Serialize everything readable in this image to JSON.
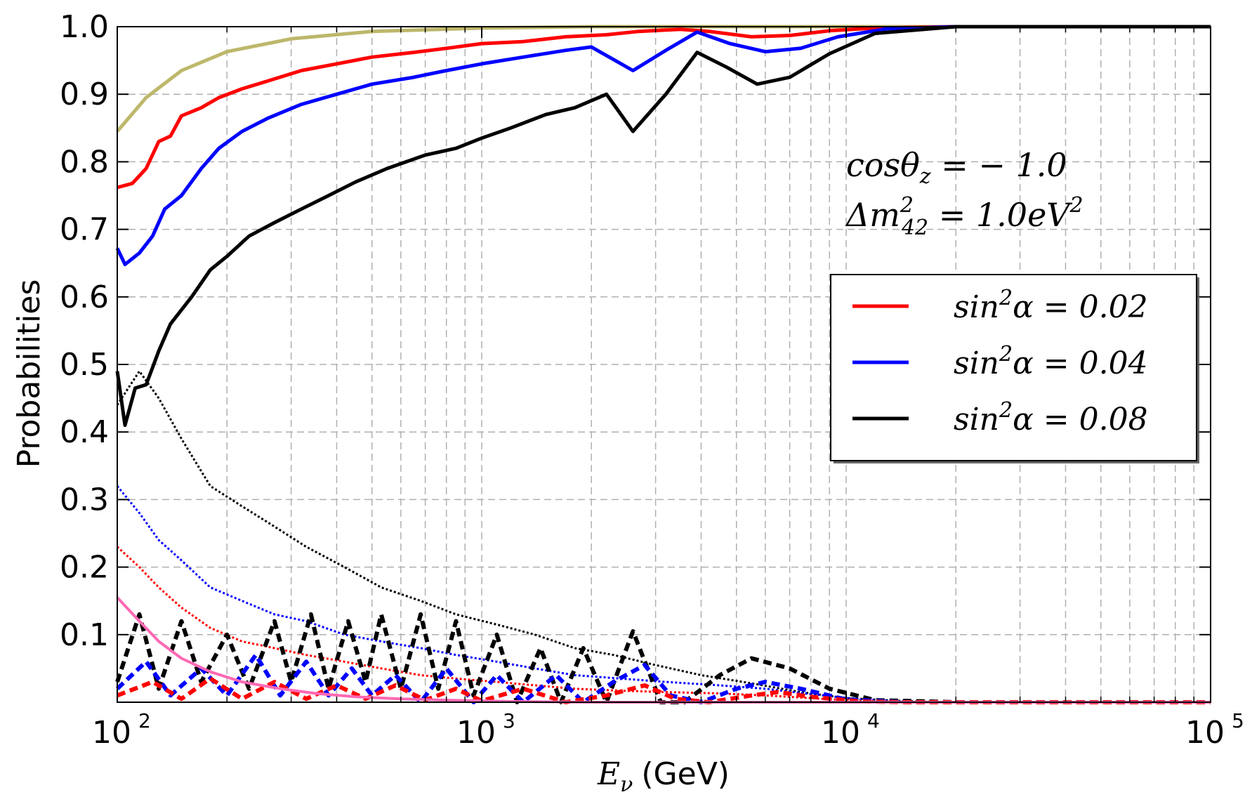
{
  "chart_data": {
    "type": "line",
    "xscale": "log",
    "xlim": [
      100,
      100000
    ],
    "ylim": [
      0.0,
      1.0
    ],
    "xlabel": {
      "symbol": "E",
      "subscript": "ν",
      "unit": "(GeV)"
    },
    "ylabel": "Probabilities",
    "x_ticks": [
      {
        "base": "10",
        "exp": "2",
        "value": 100
      },
      {
        "base": "10",
        "exp": "3",
        "value": 1000
      },
      {
        "base": "10",
        "exp": "4",
        "value": 10000
      },
      {
        "base": "10",
        "exp": "5",
        "value": 100000
      }
    ],
    "y_ticks": [
      {
        "label": "0.1",
        "value": 0.1
      },
      {
        "label": "0.2",
        "value": 0.2
      },
      {
        "label": "0.3",
        "value": 0.3
      },
      {
        "label": "0.4",
        "value": 0.4
      },
      {
        "label": "0.5",
        "value": 0.5
      },
      {
        "label": "0.6",
        "value": 0.6
      },
      {
        "label": "0.7",
        "value": 0.7
      },
      {
        "label": "0.8",
        "value": 0.8
      },
      {
        "label": "0.9",
        "value": 0.9
      },
      {
        "label": "1.0",
        "value": 1.0
      }
    ],
    "grid": true,
    "annotations": {
      "line1": {
        "lhs": "cosθ",
        "sub": "z",
        "rhs": " = − 1.0"
      },
      "line2": {
        "lhs": "Δm",
        "sup": "2",
        "sub": "42",
        "rhs": " = 1.0eV",
        "rhs_sup": "2"
      }
    },
    "legend": {
      "position": "right",
      "entries": [
        {
          "label": "sin",
          "sup": "2",
          "rest": "α = 0.02",
          "color": "#ff0000"
        },
        {
          "label": "sin",
          "sup": "2",
          "rest": "α = 0.04",
          "color": "#0000ff"
        },
        {
          "label": "sin",
          "sup": "2",
          "rest": "α = 0.08",
          "color": "#000000"
        }
      ]
    },
    "series": [
      {
        "name": "reference top (olive)",
        "color": "#bdb76b",
        "style": "solid",
        "points": [
          [
            100,
            0.845
          ],
          [
            120,
            0.895
          ],
          [
            150,
            0.935
          ],
          [
            200,
            0.963
          ],
          [
            300,
            0.982
          ],
          [
            500,
            0.993
          ],
          [
            1000,
            0.998
          ],
          [
            2000,
            1.0
          ],
          [
            100000,
            1.0
          ]
        ]
      },
      {
        "name": "sin^2 alpha = 0.02 (solid)",
        "color": "#ff0000",
        "style": "solid",
        "points": [
          [
            100,
            0.762
          ],
          [
            110,
            0.768
          ],
          [
            120,
            0.79
          ],
          [
            130,
            0.83
          ],
          [
            140,
            0.838
          ],
          [
            150,
            0.868
          ],
          [
            170,
            0.88
          ],
          [
            190,
            0.895
          ],
          [
            220,
            0.908
          ],
          [
            260,
            0.92
          ],
          [
            320,
            0.935
          ],
          [
            400,
            0.945
          ],
          [
            500,
            0.955
          ],
          [
            650,
            0.962
          ],
          [
            800,
            0.968
          ],
          [
            1000,
            0.975
          ],
          [
            1300,
            0.978
          ],
          [
            1700,
            0.985
          ],
          [
            2200,
            0.988
          ],
          [
            2700,
            0.993
          ],
          [
            3500,
            0.996
          ],
          [
            4200,
            0.993
          ],
          [
            5500,
            0.985
          ],
          [
            7000,
            0.987
          ],
          [
            9000,
            0.994
          ],
          [
            12000,
            0.998
          ],
          [
            20000,
            1.0
          ],
          [
            100000,
            1.0
          ]
        ]
      },
      {
        "name": "sin^2 alpha = 0.04 (solid)",
        "color": "#0000ff",
        "style": "solid",
        "points": [
          [
            100,
            0.672
          ],
          [
            105,
            0.648
          ],
          [
            115,
            0.665
          ],
          [
            125,
            0.69
          ],
          [
            135,
            0.73
          ],
          [
            150,
            0.75
          ],
          [
            170,
            0.79
          ],
          [
            190,
            0.82
          ],
          [
            220,
            0.845
          ],
          [
            260,
            0.865
          ],
          [
            320,
            0.885
          ],
          [
            400,
            0.9
          ],
          [
            500,
            0.915
          ],
          [
            650,
            0.925
          ],
          [
            800,
            0.935
          ],
          [
            1000,
            0.945
          ],
          [
            1300,
            0.955
          ],
          [
            1700,
            0.965
          ],
          [
            2000,
            0.97
          ],
          [
            2600,
            0.935
          ],
          [
            3200,
            0.965
          ],
          [
            3900,
            0.992
          ],
          [
            4800,
            0.975
          ],
          [
            6000,
            0.963
          ],
          [
            7500,
            0.968
          ],
          [
            9500,
            0.985
          ],
          [
            13000,
            0.997
          ],
          [
            20000,
            1.0
          ],
          [
            100000,
            1.0
          ]
        ]
      },
      {
        "name": "sin^2 alpha = 0.08 (solid)",
        "color": "#000000",
        "style": "solid",
        "points": [
          [
            100,
            0.49
          ],
          [
            105,
            0.41
          ],
          [
            112,
            0.465
          ],
          [
            120,
            0.47
          ],
          [
            130,
            0.52
          ],
          [
            140,
            0.56
          ],
          [
            160,
            0.6
          ],
          [
            180,
            0.64
          ],
          [
            200,
            0.66
          ],
          [
            230,
            0.69
          ],
          [
            270,
            0.71
          ],
          [
            320,
            0.73
          ],
          [
            380,
            0.75
          ],
          [
            450,
            0.77
          ],
          [
            550,
            0.79
          ],
          [
            700,
            0.81
          ],
          [
            850,
            0.82
          ],
          [
            1000,
            0.835
          ],
          [
            1200,
            0.85
          ],
          [
            1500,
            0.87
          ],
          [
            1800,
            0.88
          ],
          [
            2200,
            0.9
          ],
          [
            2600,
            0.845
          ],
          [
            3200,
            0.9
          ],
          [
            3900,
            0.962
          ],
          [
            4700,
            0.94
          ],
          [
            5700,
            0.915
          ],
          [
            7000,
            0.925
          ],
          [
            9000,
            0.96
          ],
          [
            12000,
            0.99
          ],
          [
            20000,
            1.0
          ],
          [
            100000,
            1.0
          ]
        ]
      },
      {
        "name": "sin^2 alpha = 0.08 (dotted)",
        "color": "#000000",
        "style": "dotted",
        "width": 3,
        "points": [
          [
            100,
            0.44
          ],
          [
            115,
            0.49
          ],
          [
            130,
            0.45
          ],
          [
            150,
            0.39
          ],
          [
            180,
            0.32
          ],
          [
            220,
            0.29
          ],
          [
            270,
            0.26
          ],
          [
            330,
            0.23
          ],
          [
            420,
            0.2
          ],
          [
            530,
            0.17
          ],
          [
            680,
            0.15
          ],
          [
            850,
            0.13
          ],
          [
            1100,
            0.115
          ],
          [
            1400,
            0.1
          ],
          [
            1800,
            0.08
          ],
          [
            2300,
            0.07
          ],
          [
            3000,
            0.055
          ],
          [
            4000,
            0.04
          ],
          [
            5500,
            0.028
          ],
          [
            7500,
            0.015
          ],
          [
            10000,
            0.006
          ],
          [
            14000,
            0.002
          ],
          [
            20000,
            0.0
          ],
          [
            100000,
            0.0
          ]
        ]
      },
      {
        "name": "sin^2 alpha = 0.04 (dotted)",
        "color": "#0000ff",
        "style": "dotted",
        "width": 3,
        "points": [
          [
            100,
            0.32
          ],
          [
            115,
            0.28
          ],
          [
            130,
            0.24
          ],
          [
            150,
            0.21
          ],
          [
            180,
            0.17
          ],
          [
            220,
            0.15
          ],
          [
            270,
            0.13
          ],
          [
            330,
            0.12
          ],
          [
            420,
            0.1
          ],
          [
            530,
            0.09
          ],
          [
            680,
            0.08
          ],
          [
            850,
            0.07
          ],
          [
            1100,
            0.06
          ],
          [
            1400,
            0.05
          ],
          [
            1800,
            0.04
          ],
          [
            2400,
            0.035
          ],
          [
            3200,
            0.03
          ],
          [
            4500,
            0.025
          ],
          [
            6000,
            0.02
          ],
          [
            8000,
            0.012
          ],
          [
            11000,
            0.004
          ],
          [
            16000,
            0.0
          ],
          [
            100000,
            0.0
          ]
        ]
      },
      {
        "name": "sin^2 alpha = 0.02 (dotted)",
        "color": "#ff0000",
        "style": "dotted",
        "width": 3,
        "points": [
          [
            100,
            0.23
          ],
          [
            115,
            0.2
          ],
          [
            130,
            0.17
          ],
          [
            150,
            0.14
          ],
          [
            180,
            0.11
          ],
          [
            220,
            0.09
          ],
          [
            270,
            0.08
          ],
          [
            330,
            0.07
          ],
          [
            420,
            0.06
          ],
          [
            530,
            0.05
          ],
          [
            680,
            0.04
          ],
          [
            850,
            0.035
          ],
          [
            1100,
            0.03
          ],
          [
            1400,
            0.025
          ],
          [
            1800,
            0.02
          ],
          [
            2400,
            0.017
          ],
          [
            3200,
            0.015
          ],
          [
            4500,
            0.013
          ],
          [
            6000,
            0.01
          ],
          [
            8000,
            0.006
          ],
          [
            11000,
            0.002
          ],
          [
            16000,
            0.0
          ],
          [
            100000,
            0.0
          ]
        ]
      },
      {
        "name": "sin^2 alpha = 0.08 (dashed)",
        "color": "#000000",
        "style": "dashed",
        "width": 6,
        "points": [
          [
            100,
            0.03
          ],
          [
            115,
            0.13
          ],
          [
            130,
            0.02
          ],
          [
            150,
            0.12
          ],
          [
            170,
            0.03
          ],
          [
            200,
            0.1
          ],
          [
            230,
            0.02
          ],
          [
            270,
            0.12
          ],
          [
            300,
            0.03
          ],
          [
            340,
            0.13
          ],
          [
            380,
            0.02
          ],
          [
            430,
            0.12
          ],
          [
            480,
            0.03
          ],
          [
            530,
            0.13
          ],
          [
            600,
            0.02
          ],
          [
            680,
            0.13
          ],
          [
            760,
            0.02
          ],
          [
            850,
            0.12
          ],
          [
            950,
            0.01
          ],
          [
            1100,
            0.1
          ],
          [
            1250,
            0.0
          ],
          [
            1450,
            0.08
          ],
          [
            1650,
            0.0
          ],
          [
            1900,
            0.08
          ],
          [
            2200,
            0.0
          ],
          [
            2600,
            0.105
          ],
          [
            3100,
            0.0
          ],
          [
            3600,
            0.0
          ],
          [
            4500,
            0.04
          ],
          [
            5500,
            0.065
          ],
          [
            7000,
            0.05
          ],
          [
            9000,
            0.02
          ],
          [
            12000,
            0.003
          ],
          [
            20000,
            0.0
          ],
          [
            100000,
            0.0
          ]
        ]
      },
      {
        "name": "sin^2 alpha = 0.04 (dashed)",
        "color": "#0000ff",
        "style": "dashed",
        "width": 6,
        "points": [
          [
            100,
            0.02
          ],
          [
            120,
            0.06
          ],
          [
            140,
            0.01
          ],
          [
            170,
            0.05
          ],
          [
            200,
            0.01
          ],
          [
            240,
            0.07
          ],
          [
            280,
            0.01
          ],
          [
            330,
            0.06
          ],
          [
            380,
            0.01
          ],
          [
            440,
            0.05
          ],
          [
            500,
            0.01
          ],
          [
            580,
            0.04
          ],
          [
            680,
            0.0
          ],
          [
            800,
            0.05
          ],
          [
            950,
            0.0
          ],
          [
            1100,
            0.04
          ],
          [
            1300,
            0.0
          ],
          [
            1600,
            0.04
          ],
          [
            1900,
            0.0
          ],
          [
            2300,
            0.03
          ],
          [
            2800,
            0.055
          ],
          [
            3300,
            0.01
          ],
          [
            4000,
            0.0
          ],
          [
            5000,
            0.02
          ],
          [
            6000,
            0.03
          ],
          [
            7500,
            0.02
          ],
          [
            10000,
            0.004
          ],
          [
            15000,
            0.0
          ],
          [
            100000,
            0.0
          ]
        ]
      },
      {
        "name": "sin^2 alpha = 0.02 (dashed)",
        "color": "#ff0000",
        "style": "dashed",
        "width": 6,
        "points": [
          [
            100,
            0.01
          ],
          [
            125,
            0.03
          ],
          [
            150,
            0.005
          ],
          [
            180,
            0.035
          ],
          [
            220,
            0.005
          ],
          [
            270,
            0.03
          ],
          [
            330,
            0.005
          ],
          [
            400,
            0.025
          ],
          [
            480,
            0.005
          ],
          [
            580,
            0.025
          ],
          [
            700,
            0.003
          ],
          [
            850,
            0.02
          ],
          [
            1000,
            0.002
          ],
          [
            1300,
            0.02
          ],
          [
            1700,
            0.0
          ],
          [
            2200,
            0.01
          ],
          [
            2800,
            0.025
          ],
          [
            3400,
            0.005
          ],
          [
            4200,
            0.0
          ],
          [
            5500,
            0.01
          ],
          [
            6500,
            0.015
          ],
          [
            8000,
            0.008
          ],
          [
            11000,
            0.001
          ],
          [
            15000,
            0.0
          ],
          [
            100000,
            0.0
          ]
        ]
      },
      {
        "name": "reference bottom (pink)",
        "color": "#ff69b4",
        "style": "solid",
        "width": 4,
        "points": [
          [
            100,
            0.155
          ],
          [
            115,
            0.12
          ],
          [
            130,
            0.09
          ],
          [
            150,
            0.065
          ],
          [
            180,
            0.045
          ],
          [
            220,
            0.03
          ],
          [
            280,
            0.02
          ],
          [
            350,
            0.013
          ],
          [
            450,
            0.008
          ],
          [
            600,
            0.005
          ],
          [
            800,
            0.003
          ],
          [
            1200,
            0.001
          ],
          [
            2000,
            0.0
          ],
          [
            100000,
            0.0
          ]
        ]
      }
    ]
  }
}
